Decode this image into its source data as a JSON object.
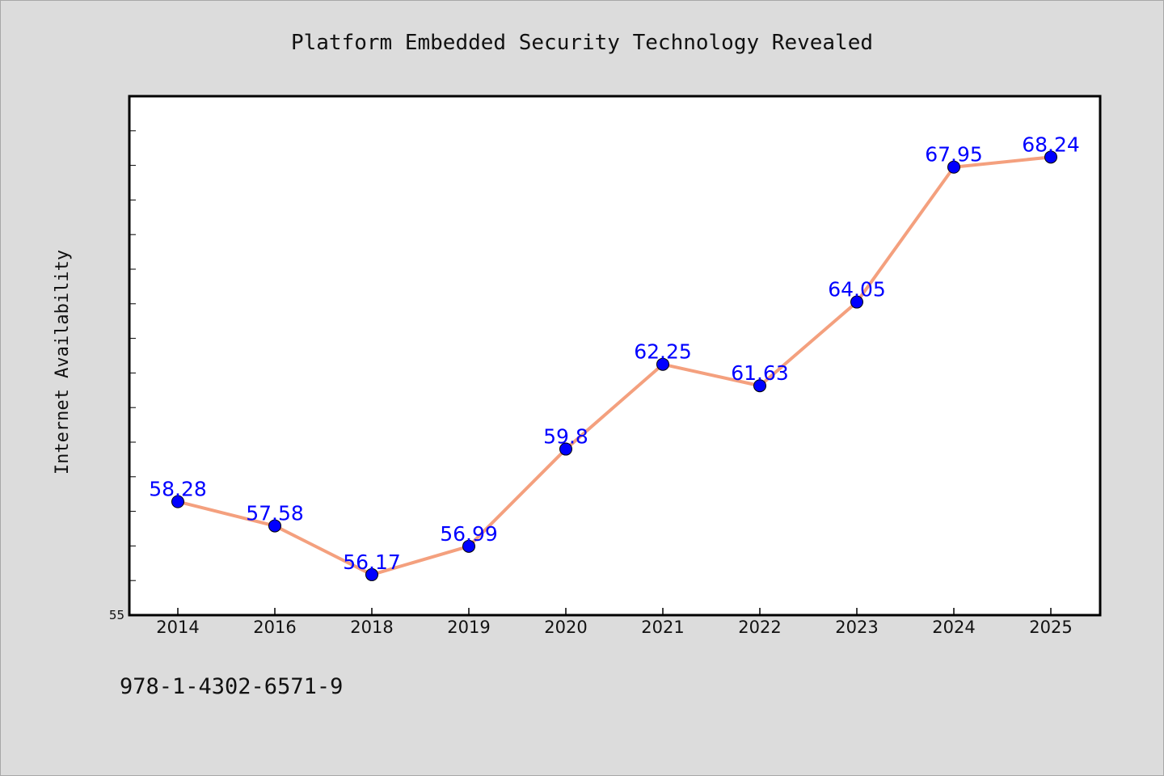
{
  "chart_data": {
    "type": "line",
    "title": "Platform Embedded Security Technology Revealed",
    "xlabel": "",
    "ylabel": "Internet Availability",
    "categories": [
      "2014",
      "2016",
      "2018",
      "2019",
      "2020",
      "2021",
      "2022",
      "2023",
      "2024",
      "2025"
    ],
    "values": [
      58.28,
      57.58,
      56.17,
      56.99,
      59.8,
      62.25,
      61.63,
      64.05,
      67.95,
      68.24
    ],
    "data_labels": [
      "58.28",
      "57.58",
      "56.17",
      "56.99",
      "59.8",
      "62.25",
      "61.63",
      "64.05",
      "67.95",
      "68.24"
    ],
    "ylim": [
      55,
      70
    ],
    "yticks_labeled": [
      "55"
    ],
    "grid": false,
    "legend": "none",
    "colors": {
      "line": "#f4a07e",
      "marker": "#0000ff",
      "label": "#0000ff",
      "plot_bg": "#ffffff",
      "page_bg": "#dcdcdc"
    }
  },
  "footnote": "978-1-4302-6571-9"
}
